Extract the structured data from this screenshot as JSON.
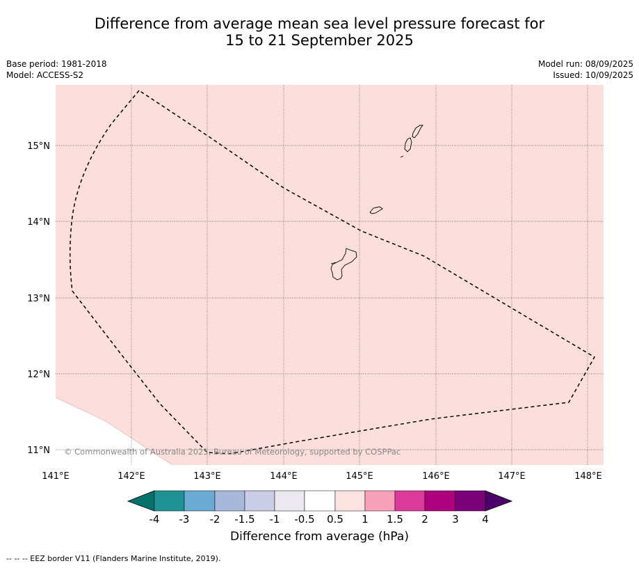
{
  "title": {
    "line1": "Difference from average mean sea level pressure forecast for",
    "line2": "15 to 21 September 2025"
  },
  "meta_left": [
    "Base period: 1981-2018",
    "Model: ACCESS-S2"
  ],
  "meta_right": [
    "Model run: 08/09/2025",
    "Issued: 10/09/2025"
  ],
  "map": {
    "lon_range": [
      141,
      148.2
    ],
    "lat_range": [
      10.8,
      15.8
    ],
    "lon_ticks": [
      "141°E",
      "142°E",
      "143°E",
      "144°E",
      "145°E",
      "146°E",
      "147°E",
      "148°E"
    ],
    "lat_ticks": [
      "15°N",
      "14°N",
      "13°N",
      "12°N",
      "11°N"
    ],
    "fill_category": "0.5 to 1",
    "fill_color": "#fcdedd",
    "background_color": "#ffffff",
    "gridlines": true,
    "copyright": "© Commonwealth of Australia 2025, Bureau of Meteorology, supported by COSPPac"
  },
  "colorbar": {
    "tick_labels": [
      "-4",
      "-3",
      "-2",
      "-1.5",
      "-1",
      "-0.5",
      "0.5",
      "1",
      "1.5",
      "2",
      "3",
      "4"
    ],
    "colors": [
      "#05716d",
      "#1f9296",
      "#6aabd3",
      "#a6b9da",
      "#cbcde6",
      "#ebe8f0",
      "#ffffff",
      "#fde2e2",
      "#f9a0ba",
      "#dc3a9a",
      "#ae017e",
      "#7a0177",
      "#4d006a"
    ],
    "label": "Difference from average (hPa)"
  },
  "footer": "--  --  -- EEZ border V11 (Flanders Marine Institute, 2019)."
}
